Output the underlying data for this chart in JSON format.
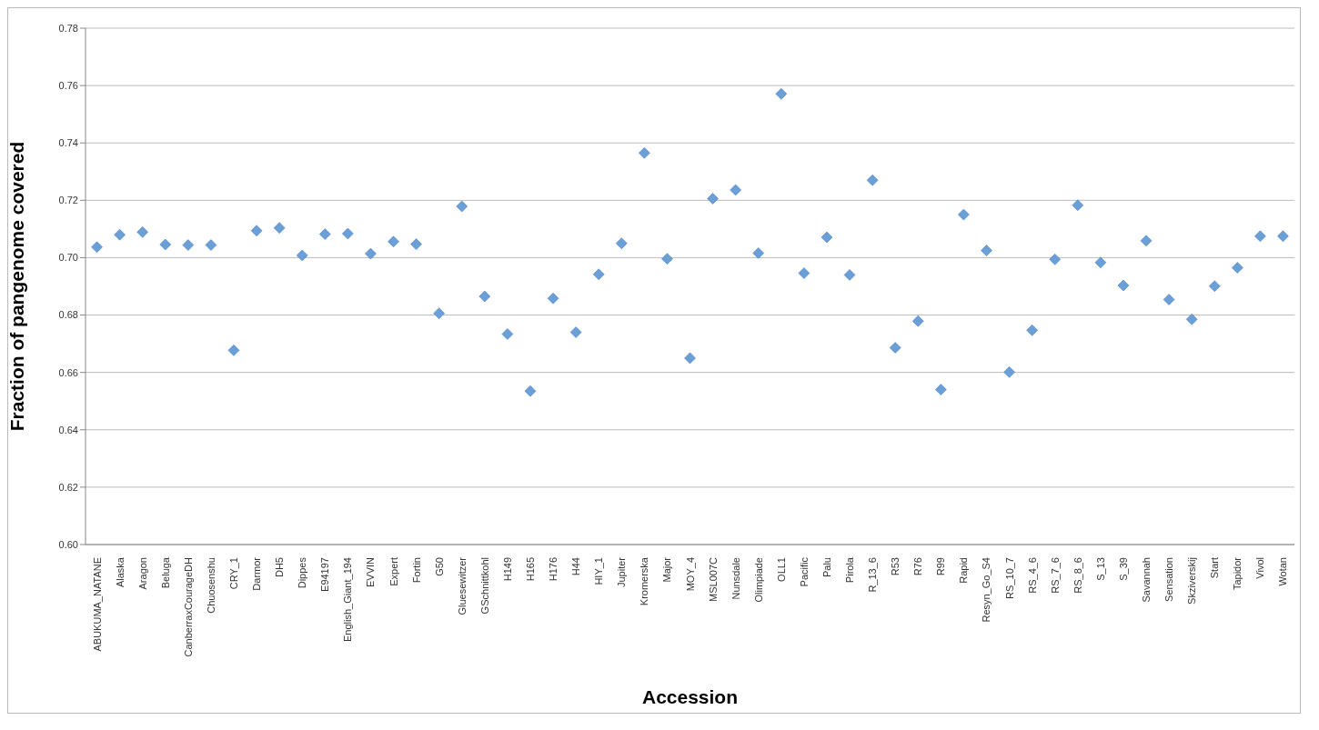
{
  "chart_data": {
    "type": "scatter",
    "xlabel": "Accession",
    "ylabel": "Fraction of pangenome covered",
    "categories": [
      "ABUKUMA_NATANE",
      "Alaska",
      "Aragon",
      "Beluga",
      "CanberraxCourageDH",
      "Chuosenshu",
      "CRY_1",
      "Darmor",
      "DH5",
      "Dippes",
      "E94197",
      "English_Giant_194",
      "EVVIN",
      "Expert",
      "Fortin",
      "G50",
      "Gluesewitzer",
      "GSchnittkohl",
      "H149",
      "H165",
      "H176",
      "H44",
      "HIY_1",
      "Jupiter",
      "Kromerska",
      "Major",
      "MOY_4",
      "MSL007C",
      "Nunsdale",
      "Olimpiade",
      "OLL1",
      "Pacific",
      "Palu",
      "Pirola",
      "R_13_6",
      "R53",
      "R76",
      "R99",
      "Rapid",
      "Resyn_Go_S4",
      "RS_10_7",
      "RS_4_6",
      "RS_7_6",
      "RS_8_6",
      "S_13",
      "S_39",
      "Savannah",
      "Sensation",
      "Skziverskij",
      "Start",
      "Tapidor",
      "Vivol",
      "Wotan"
    ],
    "values": [
      0.7037,
      0.708,
      0.7089,
      0.7046,
      0.7044,
      0.7044,
      0.6677,
      0.7094,
      0.7104,
      0.7008,
      0.7082,
      0.7084,
      0.7014,
      0.7056,
      0.7047,
      0.6806,
      0.7179,
      0.6865,
      0.6734,
      0.6535,
      0.6858,
      0.674,
      0.6942,
      0.705,
      0.7365,
      0.6996,
      0.665,
      0.7206,
      0.7236,
      0.7016,
      0.7571,
      0.6946,
      0.7071,
      0.694,
      0.727,
      0.6686,
      0.6779,
      0.654,
      0.715,
      0.7025,
      0.6601,
      0.6747,
      0.6994,
      0.7183,
      0.6983,
      0.6903,
      0.7059,
      0.6854,
      0.6785,
      0.6901,
      0.6965,
      0.7075,
      0.7075
    ],
    "color": "#6a9fd8",
    "marker": "diamond",
    "ylim": [
      0.6,
      0.78
    ],
    "yticks": [
      {
        "value": 0.6,
        "label": "0.60"
      },
      {
        "value": 0.62,
        "label": "0.62"
      },
      {
        "value": 0.64,
        "label": "0.64"
      },
      {
        "value": 0.66,
        "label": "0.66"
      },
      {
        "value": 0.68,
        "label": "0.68"
      },
      {
        "value": 0.7,
        "label": "0.70"
      },
      {
        "value": 0.72,
        "label": "0.72"
      },
      {
        "value": 0.74,
        "label": "0.74"
      },
      {
        "value": 0.76,
        "label": "0.76"
      },
      {
        "value": 0.78,
        "label": "0.78"
      }
    ],
    "grid": "y"
  }
}
